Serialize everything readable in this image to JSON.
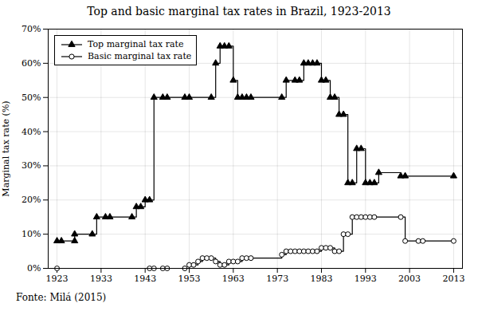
{
  "chart_data": {
    "type": "step",
    "title": "Top and basic marginal tax rates in Brazil, 1923-2013",
    "ylabel": "Marginal tax rate (%)",
    "caption": "Fonte: Milá (2015)",
    "xlim": [
      1921,
      2015
    ],
    "xticks": [
      1923,
      1933,
      1943,
      1953,
      1963,
      1973,
      1983,
      1993,
      2003,
      2013
    ],
    "ylim": [
      0,
      70
    ],
    "yticks": [
      {
        "value": 0,
        "label": "0%"
      },
      {
        "value": 10,
        "label": "10%"
      },
      {
        "value": 20,
        "label": "20%"
      },
      {
        "value": 30,
        "label": "30%"
      },
      {
        "value": 40,
        "label": "40%"
      },
      {
        "value": 50,
        "label": "50%"
      },
      {
        "value": 60,
        "label": "60%"
      },
      {
        "value": 70,
        "label": "70%"
      }
    ],
    "grid": true,
    "legend": "upper left",
    "series": [
      {
        "name": "Top marginal tax rate",
        "color": "#000000",
        "marker": "triangle",
        "x": [
          1923,
          1924,
          1927,
          1927,
          1931,
          1932,
          1934,
          1935,
          1940,
          1941,
          1942,
          1943,
          1944,
          1945,
          1947,
          1948,
          1952,
          1953,
          1958,
          1959,
          1960,
          1961,
          1962,
          1963,
          1964,
          1965,
          1966,
          1967,
          1974,
          1975,
          1977,
          1978,
          1979,
          1980,
          1981,
          1982,
          1983,
          1984,
          1985,
          1986,
          1987,
          1988,
          1989,
          1990,
          1991,
          1992,
          1993,
          1994,
          1995,
          1996,
          2001,
          2002,
          2013
        ],
        "values": [
          8,
          8,
          8,
          10,
          10,
          15,
          15,
          15,
          15,
          18,
          18,
          20,
          20,
          50,
          50,
          50,
          50,
          50,
          50,
          60,
          65,
          65,
          65,
          55,
          50,
          50,
          50,
          50,
          50,
          55,
          55,
          55,
          60,
          60,
          60,
          60,
          55,
          55,
          50,
          50,
          45,
          45,
          25,
          25,
          35,
          35,
          25,
          25,
          25,
          28,
          27,
          27,
          27
        ]
      },
      {
        "name": "Basic marginal tax rate",
        "color": "#000000",
        "marker": "circle_open",
        "x": [
          1923,
          1944,
          1945,
          1947,
          1948,
          1952,
          1953,
          1954,
          1955,
          1956,
          1957,
          1958,
          1959,
          1960,
          1961,
          1962,
          1963,
          1964,
          1965,
          1966,
          1967,
          1974,
          1975,
          1976,
          1977,
          1978,
          1979,
          1980,
          1981,
          1982,
          1983,
          1984,
          1985,
          1986,
          1987,
          1988,
          1989,
          1990,
          1991,
          1992,
          1993,
          1994,
          1995,
          2001,
          2002,
          2005,
          2006,
          2013
        ],
        "values": [
          0,
          0,
          0,
          0,
          0,
          0,
          1,
          1,
          2,
          3,
          3,
          3,
          2,
          1,
          1,
          2,
          2,
          2,
          3,
          3,
          3,
          4,
          5,
          5,
          5,
          5,
          5,
          5,
          5,
          5,
          6,
          6,
          6,
          5,
          5,
          10,
          10,
          15,
          15,
          15,
          15,
          15,
          15,
          15,
          8,
          8,
          8,
          8
        ]
      }
    ]
  }
}
